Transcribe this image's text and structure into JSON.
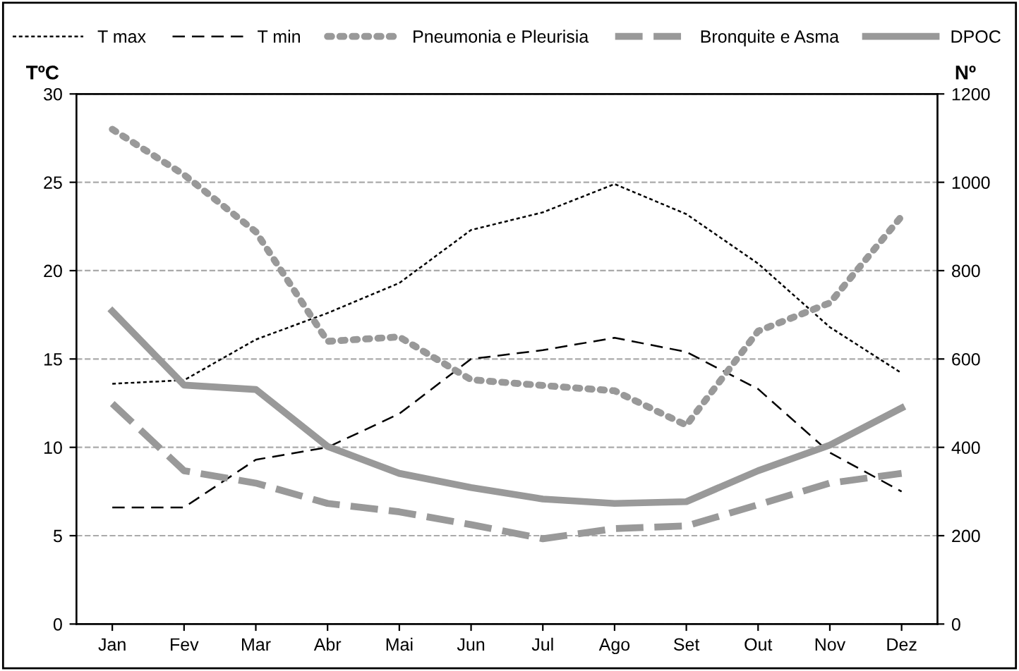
{
  "chart_data": {
    "type": "line",
    "ylabel": "TºC",
    "y2label": "Nº",
    "categories": [
      "Jan",
      "Fev",
      "Mar",
      "Abr",
      "Mai",
      "Jun",
      "Jul",
      "Ago",
      "Set",
      "Out",
      "Nov",
      "Dez"
    ],
    "series": [
      {
        "name": "T max",
        "color": "#000000",
        "line_style": "dotted",
        "values": [
          13.6,
          13.8,
          16.1,
          17.6,
          19.3,
          22.3,
          23.3,
          24.9,
          23.2,
          20.4,
          16.8,
          14.2
        ]
      },
      {
        "name": "T min",
        "color": "#000000",
        "line_style": "dashed",
        "values": [
          6.6,
          6.6,
          9.3,
          10.0,
          11.9,
          15.0,
          15.5,
          16.2,
          15.4,
          13.3,
          9.7,
          7.5
        ]
      },
      {
        "name": "Pneumonia e Pleurisia",
        "color": "#999999",
        "line_style": "dotted",
        "axis": "y2",
        "values": [
          1120,
          1017,
          888,
          640,
          650,
          553,
          540,
          528,
          450,
          663,
          727,
          923
        ]
      },
      {
        "name": "Bronquite e Asma",
        "color": "#999999",
        "line_style": "dashed",
        "axis": "y2",
        "values": [
          499,
          347,
          319,
          273,
          254,
          225,
          193,
          216,
          222,
          270,
          319,
          341
        ]
      },
      {
        "name": "DPOC",
        "color": "#999999",
        "line_style": "solid",
        "axis": "y2",
        "values": [
          708,
          541,
          531,
          402,
          341,
          309,
          283,
          273,
          277,
          347,
          405,
          489
        ]
      }
    ],
    "ylim": [
      0,
      30
    ],
    "yticks": [
      0,
      5,
      10,
      15,
      20,
      25,
      30
    ],
    "y2lim": [
      0,
      1200
    ],
    "y2ticks": [
      0,
      200,
      400,
      600,
      800,
      1000,
      1200
    ],
    "grid": "y",
    "legend": "top",
    "marker": "none"
  }
}
